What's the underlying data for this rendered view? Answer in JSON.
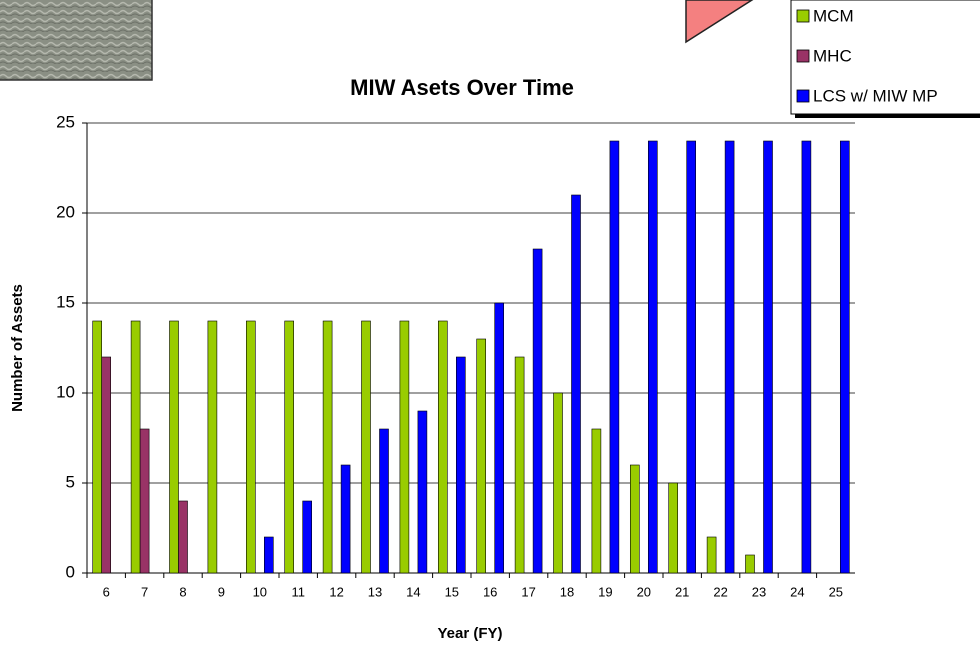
{
  "chart_data": {
    "type": "bar",
    "title": "MIW Asets Over Time",
    "x_label": "Year (FY)",
    "y_label": "Number of Assets",
    "categories": [
      "6",
      "7",
      "8",
      "9",
      "10",
      "11",
      "12",
      "13",
      "14",
      "15",
      "16",
      "17",
      "18",
      "19",
      "20",
      "21",
      "22",
      "23",
      "24",
      "25"
    ],
    "series": [
      {
        "name": "MCM",
        "color": "#99cc00",
        "values": [
          14,
          14,
          14,
          14,
          14,
          14,
          14,
          14,
          14,
          14,
          13,
          12,
          10,
          8,
          6,
          5,
          2,
          1,
          0,
          0
        ]
      },
      {
        "name": "MHC",
        "color": "#993366",
        "values": [
          12,
          8,
          4,
          0,
          0,
          0,
          0,
          0,
          0,
          0,
          0,
          0,
          0,
          0,
          0,
          0,
          0,
          0,
          0,
          0
        ]
      },
      {
        "name": "LCS w/ MIW MP",
        "color": "#0000ff",
        "values": [
          0,
          0,
          0,
          0,
          2,
          4,
          6,
          8,
          9,
          12,
          15,
          18,
          21,
          24,
          24,
          24,
          24,
          24,
          24,
          24
        ]
      }
    ],
    "ylim": [
      0,
      25
    ],
    "yticks": [
      0,
      5,
      10,
      15,
      20,
      25
    ],
    "grid": true
  }
}
